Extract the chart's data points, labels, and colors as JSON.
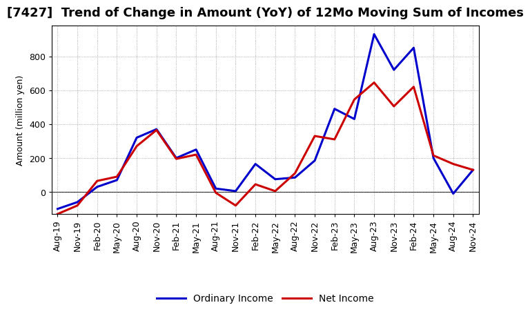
{
  "title": "[7427]  Trend of Change in Amount (YoY) of 12Mo Moving Sum of Incomes",
  "ylabel": "Amount (million yen)",
  "x_labels": [
    "Aug-19",
    "Nov-19",
    "Feb-20",
    "May-20",
    "Aug-20",
    "Nov-20",
    "Feb-21",
    "May-21",
    "Aug-21",
    "Nov-21",
    "Feb-22",
    "May-22",
    "Aug-22",
    "Nov-22",
    "Feb-23",
    "May-23",
    "Aug-23",
    "Nov-23",
    "Feb-24",
    "May-24",
    "Aug-24",
    "Nov-24"
  ],
  "ordinary_income": [
    -100,
    -60,
    30,
    70,
    320,
    370,
    200,
    250,
    20,
    5,
    165,
    75,
    85,
    185,
    490,
    430,
    930,
    720,
    850,
    200,
    -10,
    130
  ],
  "net_income": [
    -130,
    -80,
    65,
    90,
    270,
    365,
    195,
    220,
    -5,
    -80,
    45,
    5,
    110,
    330,
    310,
    545,
    645,
    505,
    620,
    215,
    165,
    130
  ],
  "ordinary_income_color": "#0000cc",
  "net_income_color": "#cc0000",
  "background_color": "#ffffff",
  "plot_bg_color": "#ffffff",
  "grid_color": "#999999",
  "ylim": [
    -130,
    980
  ],
  "yticks": [
    0,
    200,
    400,
    600,
    800
  ],
  "legend_labels": [
    "Ordinary Income",
    "Net Income"
  ],
  "line_width": 2.2,
  "title_fontsize": 13,
  "axis_fontsize": 9,
  "tick_fontsize": 9
}
